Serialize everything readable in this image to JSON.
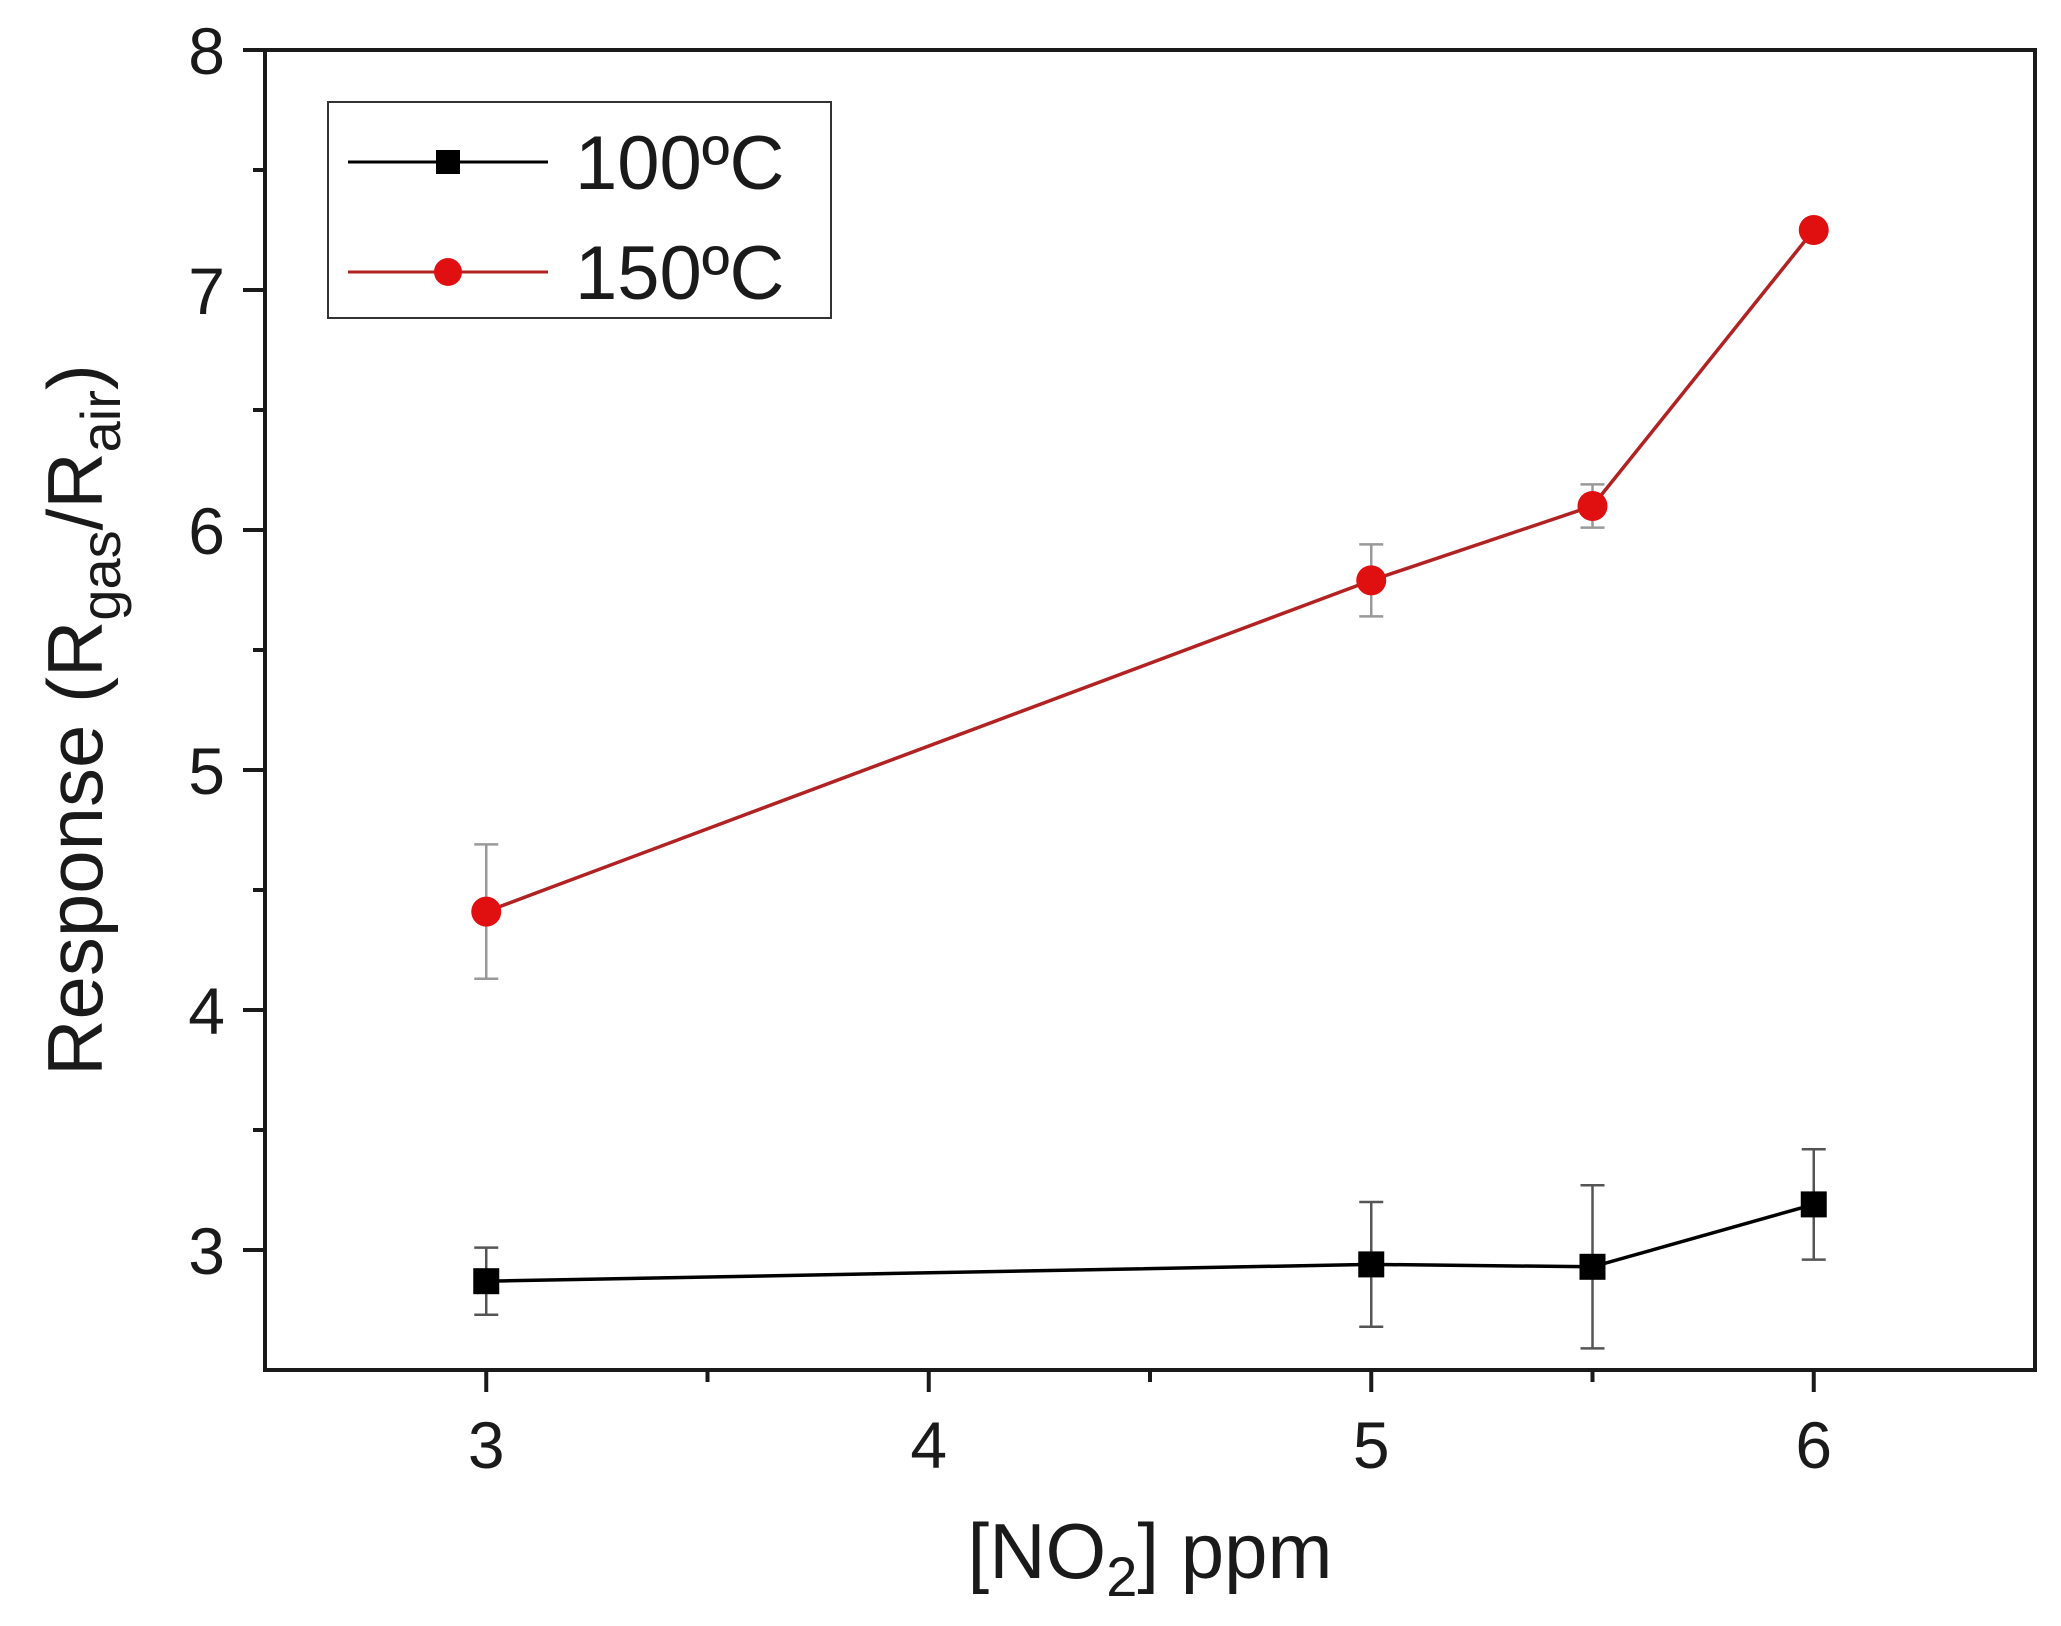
{
  "chart_data": {
    "type": "line",
    "xlabel": {
      "open": "[NO",
      "sub": "2",
      "close": "] ppm"
    },
    "ylabel": {
      "p1": "Response (R",
      "s1": "gas",
      "p2": "/R",
      "s2": "air",
      "p3": ")"
    },
    "xlim": [
      2.5,
      6.5
    ],
    "ylim": [
      2.5,
      8
    ],
    "x_ticks": [
      3,
      4,
      5,
      6
    ],
    "x_tick_labels": [
      "3",
      "4",
      "5",
      "6"
    ],
    "x_minor_ticks": [
      3.5,
      4.5,
      5.5
    ],
    "y_ticks": [
      3,
      4,
      5,
      6,
      7,
      8
    ],
    "y_tick_labels": [
      "3",
      "4",
      "5",
      "6",
      "7",
      "8"
    ],
    "y_minor_ticks": [
      3.5,
      4.5,
      5.5,
      6.5,
      7.5
    ],
    "legend_position": "top-left",
    "grid": false,
    "series": [
      {
        "name": "100ºC",
        "color": "#000000",
        "errorbar_color": "#555555",
        "marker": "square",
        "x": [
          3,
          5,
          5.5,
          6
        ],
        "y": [
          2.87,
          2.94,
          2.93,
          3.19
        ],
        "yerr": [
          0.14,
          0.26,
          0.34,
          0.23
        ]
      },
      {
        "name": "150ºC",
        "color": "#e01010",
        "line_color": "#b22222",
        "errorbar_color": "#999999",
        "marker": "circle",
        "x": [
          3,
          5,
          5.5,
          6
        ],
        "y": [
          4.41,
          5.79,
          6.1,
          7.25
        ],
        "yerr": [
          0.28,
          0.15,
          0.09,
          0.0
        ]
      }
    ]
  }
}
